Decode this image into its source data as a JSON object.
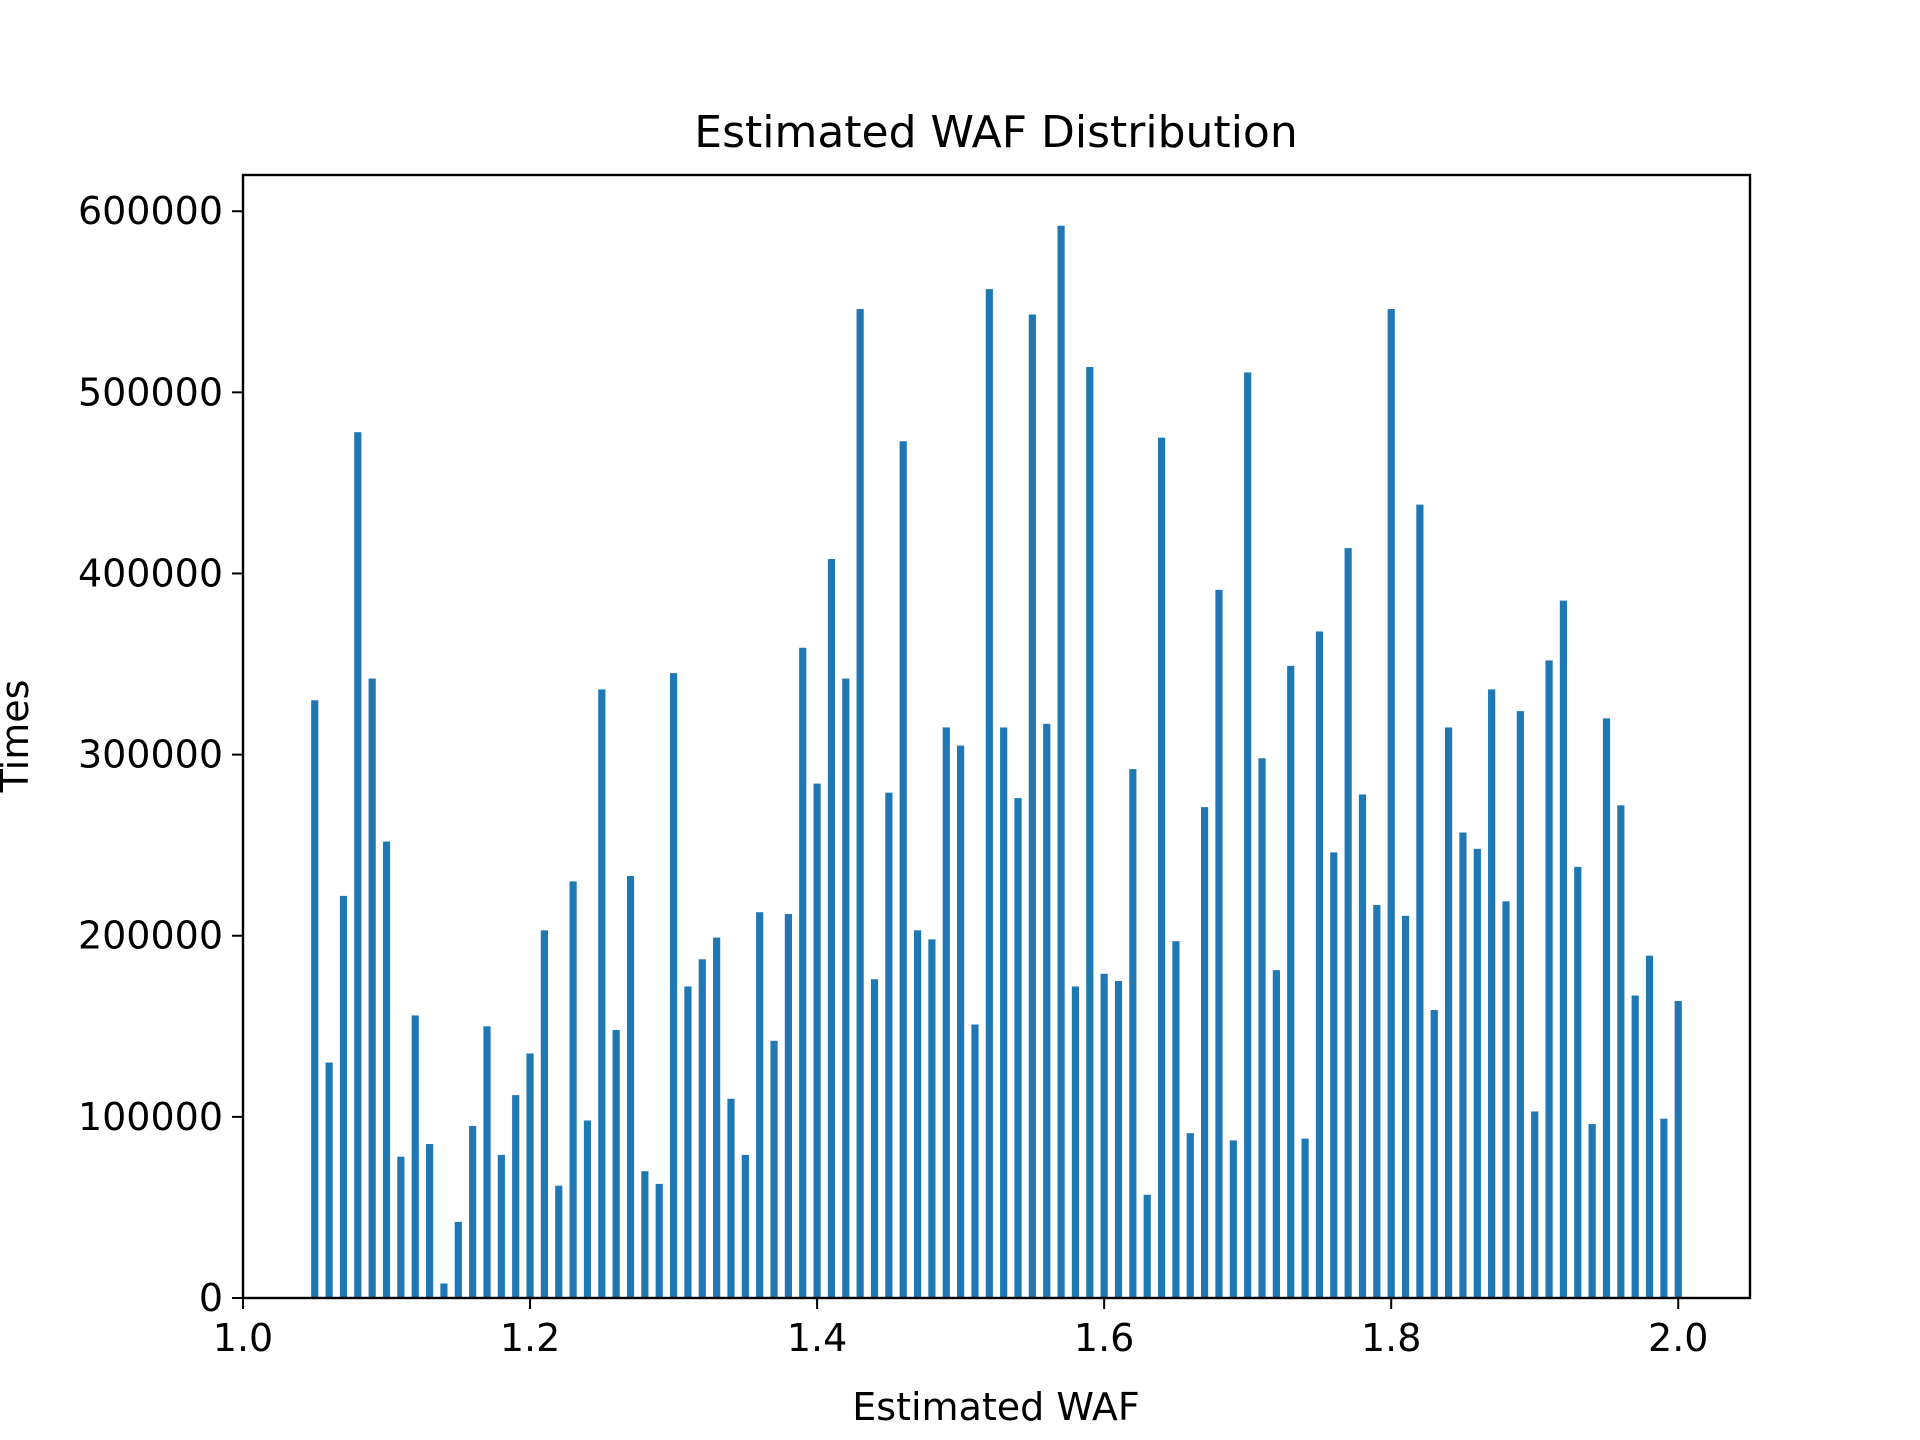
{
  "chart_data": {
    "type": "bar",
    "title": "Estimated WAF Distribution",
    "xlabel": "Estimated WAF",
    "ylabel": "Times",
    "xlim": [
      1.0,
      2.05
    ],
    "ylim": [
      0,
      620000
    ],
    "grid": false,
    "bar_color": "#1f77b4",
    "bar_width": 0.005,
    "xticks": [
      1.0,
      1.2,
      1.4,
      1.6,
      1.8,
      2.0
    ],
    "xtick_labels": [
      "1.0",
      "1.2",
      "1.4",
      "1.6",
      "1.8",
      "2.0"
    ],
    "yticks": [
      0,
      100000,
      200000,
      300000,
      400000,
      500000,
      600000
    ],
    "ytick_labels": [
      "0",
      "100000",
      "200000",
      "300000",
      "400000",
      "500000",
      "600000"
    ],
    "x": [
      1.05,
      1.06,
      1.07,
      1.08,
      1.09,
      1.1,
      1.11,
      1.12,
      1.13,
      1.14,
      1.15,
      1.16,
      1.17,
      1.18,
      1.19,
      1.2,
      1.21,
      1.22,
      1.23,
      1.24,
      1.25,
      1.26,
      1.27,
      1.28,
      1.29,
      1.3,
      1.31,
      1.32,
      1.33,
      1.34,
      1.35,
      1.36,
      1.37,
      1.38,
      1.39,
      1.4,
      1.41,
      1.42,
      1.43,
      1.44,
      1.45,
      1.46,
      1.47,
      1.48,
      1.49,
      1.5,
      1.51,
      1.52,
      1.53,
      1.54,
      1.55,
      1.56,
      1.57,
      1.58,
      1.59,
      1.6,
      1.61,
      1.62,
      1.63,
      1.64,
      1.65,
      1.66,
      1.67,
      1.68,
      1.69,
      1.7,
      1.71,
      1.72,
      1.73,
      1.74,
      1.75,
      1.76,
      1.77,
      1.78,
      1.79,
      1.8,
      1.81,
      1.82,
      1.83,
      1.84,
      1.85,
      1.86,
      1.87,
      1.88,
      1.89,
      1.9,
      1.91,
      1.92,
      1.93,
      1.94,
      1.95,
      1.96,
      1.97,
      1.98,
      1.99,
      2.0
    ],
    "values": [
      330000,
      130000,
      222000,
      478000,
      342000,
      252000,
      78000,
      156000,
      85000,
      8000,
      42000,
      95000,
      150000,
      79000,
      112000,
      135000,
      203000,
      62000,
      230000,
      98000,
      336000,
      148000,
      233000,
      70000,
      63000,
      345000,
      172000,
      187000,
      199000,
      110000,
      79000,
      213000,
      142000,
      212000,
      359000,
      284000,
      408000,
      342000,
      546000,
      176000,
      279000,
      473000,
      203000,
      198000,
      315000,
      305000,
      151000,
      557000,
      315000,
      276000,
      543000,
      317000,
      592000,
      172000,
      514000,
      179000,
      175000,
      292000,
      57000,
      475000,
      197000,
      91000,
      271000,
      391000,
      87000,
      511000,
      298000,
      181000,
      349000,
      88000,
      368000,
      246000,
      414000,
      278000,
      217000,
      546000,
      211000,
      438000,
      159000,
      315000,
      257000,
      248000,
      336000,
      219000,
      324000,
      103000,
      352000,
      385000,
      238000,
      96000,
      320000,
      272000,
      167000,
      189000,
      99000,
      164000
    ]
  }
}
